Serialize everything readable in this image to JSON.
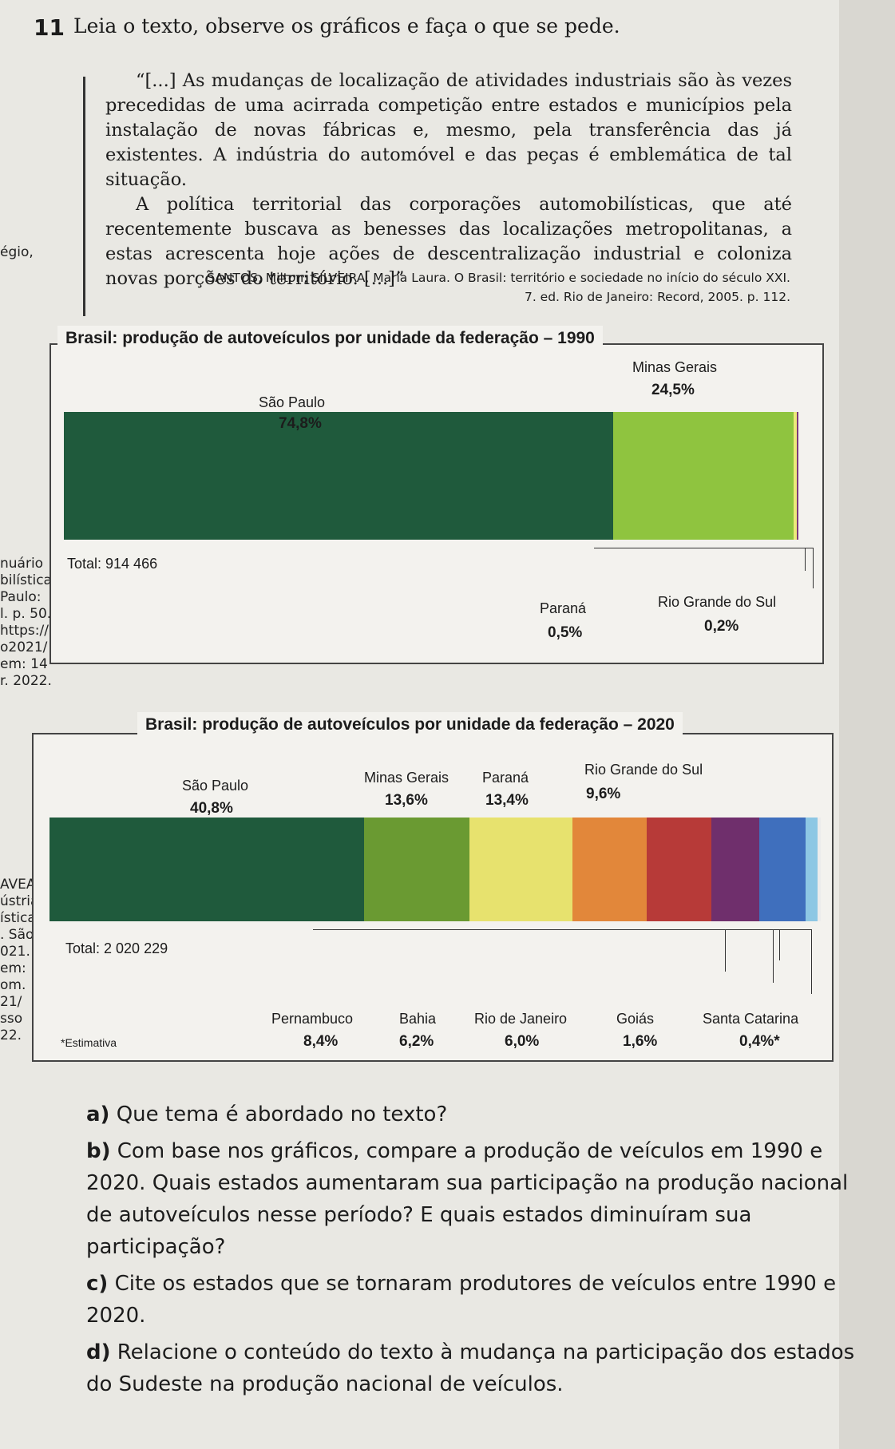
{
  "question": {
    "number": "11",
    "text": "Leia o texto, observe os gráficos e faça o que se pede."
  },
  "quote": {
    "p1": "“[...] As mudanças de localização de atividades industriais são às vezes precedidas de uma acirrada competição entre estados e municípios pela instalação de novas fábricas e, mesmo, pela transferência das já existentes. A indústria do automóvel e das peças é emblemática de tal situação.",
    "p2": "A política territorial das corporações automobilísticas, que até recentemente buscava as benesses das localizações metropolitanas, a estas acrescenta hoje ações de descentralização industrial e coloniza novas porções do território. [...]”",
    "source_line1": "SANTOS, Milton; SILVEIRA, María Laura. O Brasil: território e sociedade no início do século XXI.",
    "source_line2": "7. ed. Rio de Janeiro: Record, 2005. p. 112."
  },
  "margin_fragments": {
    "a": "égio,",
    "b": [
      "nuário",
      "bilística",
      "Paulo:",
      "l. p. 50.",
      "https://",
      "o2021/",
      "em: 14",
      "r. 2022."
    ],
    "c": [
      "AVEA.",
      "ústria",
      "ística",
      ". São",
      "021.",
      "em:",
      "om.",
      "21/",
      "sso",
      "22."
    ]
  },
  "chart_data": [
    {
      "type": "bar",
      "title": "Brasil: produção de autoveículos por unidade da federação – 1990",
      "total_label": "Total: 914 466",
      "categories": [
        "São Paulo",
        "Minas Gerais",
        "Paraná",
        "Rio Grande do Sul"
      ],
      "values": [
        74.8,
        24.5,
        0.5,
        0.2
      ],
      "value_labels": [
        "74,8%",
        "24,5%",
        "0,5%",
        "0,2%"
      ],
      "colors": [
        "#1f5a3c",
        "#8fc43f",
        "#ece97a",
        "#7b3a7a"
      ]
    },
    {
      "type": "bar",
      "title": "Brasil: produção de autoveículos por unidade da federação – 2020",
      "total_label": "Total: 2 020 229",
      "note": "*Estimativa",
      "categories": [
        "São Paulo",
        "Minas Gerais",
        "Paraná",
        "Rio Grande do Sul",
        "Pernambuco",
        "Bahia",
        "Rio de Janeiro",
        "Goiás",
        "Santa Catarina"
      ],
      "values": [
        40.8,
        13.6,
        13.4,
        9.6,
        8.4,
        6.2,
        6.0,
        1.6,
        0.4
      ],
      "value_labels": [
        "40,8%",
        "13,6%",
        "13,4%",
        "9,6%",
        "8,4%",
        "6,2%",
        "6,0%",
        "1,6%",
        "0,4%*"
      ],
      "colors": [
        "#1f5a3c",
        "#6a9a32",
        "#e7e26e",
        "#e2873a",
        "#b73a38",
        "#6f2f6c",
        "#3f6fbd",
        "#8dc7e4",
        "#ececec"
      ]
    }
  ],
  "tasks": [
    {
      "letter": "a)",
      "text": "Que tema é abordado no texto?"
    },
    {
      "letter": "b)",
      "text": "Com base nos gráficos, compare a produção de veículos em 1990 e 2020. Quais estados aumentaram sua participação na produção nacional de autoveículos nesse período? E quais estados diminuíram sua participação?"
    },
    {
      "letter": "c)",
      "text": "Cite os estados que se tornaram produtores de veículos entre 1990 e 2020."
    },
    {
      "letter": "d)",
      "text": "Relacione o conteúdo do texto à mudança na participação dos estados do Sudeste na produção nacional de veículos."
    }
  ]
}
